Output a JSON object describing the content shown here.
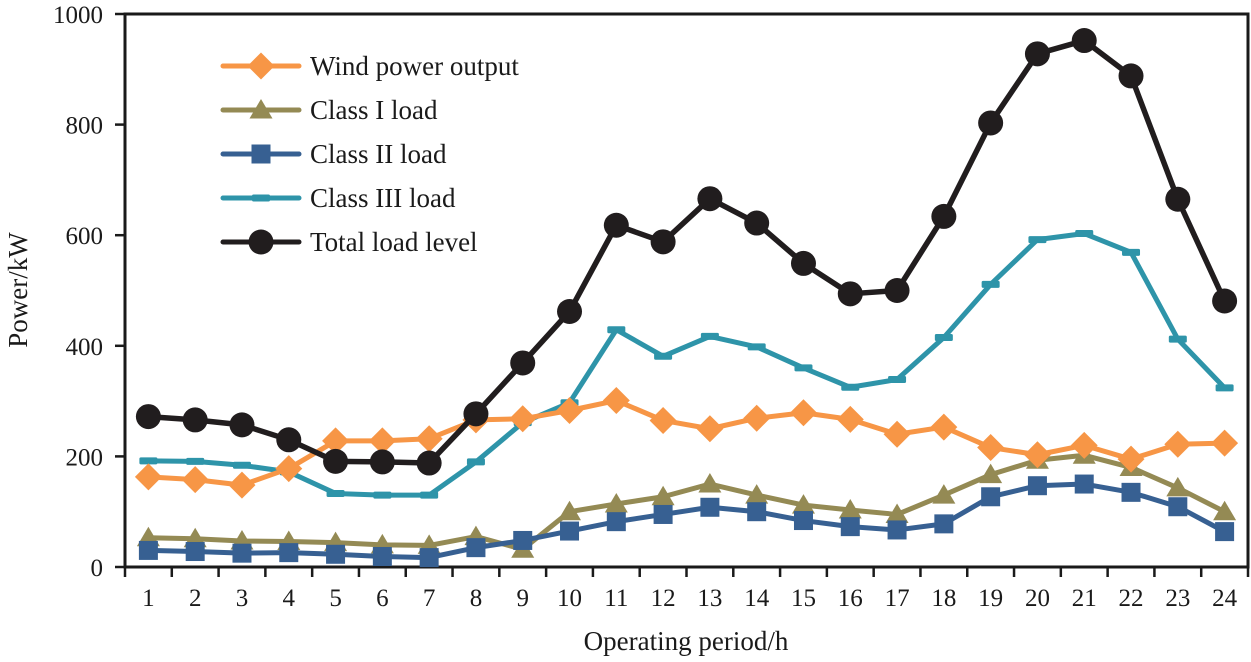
{
  "chart_data": {
    "type": "line",
    "xlabel": "Operating period/h",
    "ylabel": "Power/kW",
    "x": [
      1,
      2,
      3,
      4,
      5,
      6,
      7,
      8,
      9,
      10,
      11,
      12,
      13,
      14,
      15,
      16,
      17,
      18,
      19,
      20,
      21,
      22,
      23,
      24
    ],
    "ylim": [
      0,
      1000
    ],
    "yticks": [
      0,
      200,
      400,
      600,
      800,
      1000
    ],
    "grid": false,
    "legend_position": "inside-top-left",
    "axis_color": "#1A1A1A",
    "series": [
      {
        "name": "Wind power output",
        "color": "#F79646",
        "marker": "diamond",
        "values": [
          163,
          158,
          148,
          178,
          228,
          228,
          232,
          266,
          268,
          283,
          301,
          265,
          250,
          269,
          279,
          267,
          240,
          253,
          216,
          203,
          220,
          195,
          222,
          224
        ]
      },
      {
        "name": "Class I load",
        "color": "#948A54",
        "marker": "triangle",
        "values": [
          53,
          51,
          47,
          46,
          44,
          40,
          39,
          55,
          32,
          100,
          114,
          127,
          150,
          130,
          112,
          103,
          95,
          130,
          167,
          193,
          202,
          180,
          143,
          100
        ]
      },
      {
        "name": "Class II load",
        "color": "#376092",
        "marker": "square",
        "values": [
          30,
          28,
          25,
          26,
          23,
          19,
          17,
          35,
          48,
          65,
          82,
          95,
          108,
          100,
          84,
          73,
          67,
          78,
          127,
          147,
          150,
          135,
          109,
          64
        ]
      },
      {
        "name": "Class III load",
        "color": "#2E94A9",
        "marker": "dash",
        "values": [
          192,
          191,
          184,
          172,
          133,
          130,
          130,
          190,
          261,
          297,
          429,
          381,
          417,
          398,
          360,
          325,
          339,
          415,
          511,
          592,
          603,
          569,
          412,
          324
        ]
      },
      {
        "name": "Total load level",
        "color": "#211D1E",
        "marker": "circle",
        "values": [
          272,
          266,
          257,
          230,
          191,
          190,
          188,
          277,
          369,
          462,
          618,
          588,
          666,
          622,
          549,
          494,
          500,
          634,
          803,
          928,
          952,
          888,
          665,
          481
        ]
      }
    ]
  }
}
